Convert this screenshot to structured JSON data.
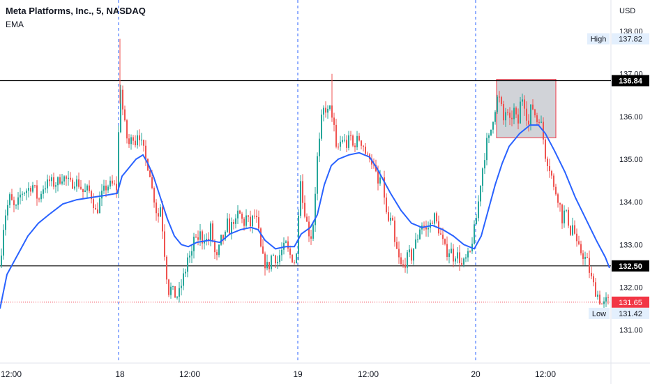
{
  "header": {
    "symbol_title": "Meta Platforms, Inc., 5, NASDAQ",
    "indicator_label": "EMA"
  },
  "chart_data": {
    "type": "candlestick",
    "currency_label": "USD",
    "y_ticks": [
      131.0,
      132.0,
      133.0,
      134.0,
      135.0,
      136.0,
      137.0,
      138.0
    ],
    "ylim": [
      130.6,
      138.5
    ],
    "x_tick_labels": [
      "12:00",
      "18",
      "12:00",
      "19",
      "12:00",
      "20",
      "12:00"
    ],
    "day_separators": [
      "18",
      "19",
      "20"
    ],
    "horizontal_levels": [
      136.84,
      132.5
    ],
    "current_price": 131.65,
    "high": {
      "label": "High",
      "value": 137.82
    },
    "low": {
      "label": "Low",
      "value": 131.42
    },
    "colors": {
      "up": "#26a69a",
      "down": "#ef5350",
      "ema": "#2962ff",
      "level_line": "#000000",
      "current_price": "#f23645",
      "separator": "#2962ff",
      "box_fill": "#b2b5be",
      "box_border": "#f23645"
    },
    "price_path": [
      [
        0,
        132.5
      ],
      [
        6,
        133.6
      ],
      [
        14,
        134.1
      ],
      [
        22,
        133.8
      ],
      [
        30,
        134.2
      ],
      [
        40,
        134.3
      ],
      [
        48,
        134.4
      ],
      [
        55,
        134.0
      ],
      [
        60,
        134.3
      ],
      [
        66,
        134.4
      ],
      [
        72,
        134.5
      ],
      [
        78,
        134.4
      ],
      [
        84,
        134.5
      ],
      [
        90,
        134.6
      ],
      [
        96,
        134.5
      ],
      [
        102,
        134.4
      ],
      [
        108,
        134.5
      ],
      [
        114,
        134.4
      ],
      [
        120,
        134.2
      ],
      [
        126,
        134.3
      ],
      [
        132,
        134.1
      ],
      [
        138,
        133.7
      ],
      [
        144,
        134.1
      ],
      [
        150,
        134.3
      ],
      [
        156,
        134.4
      ],
      [
        162,
        134.4
      ],
      [
        168,
        134.3
      ],
      [
        172,
        136.9
      ],
      [
        175,
        136.3
      ],
      [
        178,
        135.9
      ],
      [
        182,
        135.5
      ],
      [
        186,
        135.3
      ],
      [
        190,
        135.6
      ],
      [
        194,
        135.4
      ],
      [
        198,
        135.7
      ],
      [
        202,
        135.4
      ],
      [
        206,
        135.2
      ],
      [
        210,
        134.9
      ],
      [
        214,
        134.8
      ],
      [
        218,
        134.3
      ],
      [
        222,
        134.0
      ],
      [
        226,
        133.6
      ],
      [
        230,
        133.9
      ],
      [
        234,
        133.2
      ],
      [
        238,
        132.4
      ],
      [
        242,
        131.9
      ],
      [
        246,
        132.0
      ],
      [
        250,
        131.8
      ],
      [
        254,
        131.8
      ],
      [
        258,
        131.9
      ],
      [
        262,
        132.2
      ],
      [
        266,
        132.4
      ],
      [
        270,
        132.8
      ],
      [
        274,
        132.6
      ],
      [
        278,
        133.2
      ],
      [
        282,
        133.0
      ],
      [
        286,
        133.3
      ],
      [
        290,
        133.1
      ],
      [
        294,
        133.2
      ],
      [
        298,
        133.0
      ],
      [
        302,
        133.4
      ],
      [
        306,
        133.0
      ],
      [
        310,
        132.6
      ],
      [
        314,
        132.9
      ],
      [
        318,
        133.2
      ],
      [
        322,
        133.1
      ],
      [
        326,
        133.5
      ],
      [
        330,
        133.3
      ],
      [
        334,
        133.6
      ],
      [
        338,
        133.5
      ],
      [
        342,
        133.8
      ],
      [
        346,
        133.6
      ],
      [
        350,
        133.5
      ],
      [
        354,
        133.7
      ],
      [
        358,
        133.4
      ],
      [
        362,
        133.6
      ],
      [
        366,
        133.7
      ],
      [
        370,
        133.4
      ],
      [
        374,
        132.9
      ],
      [
        378,
        132.6
      ],
      [
        382,
        132.5
      ],
      [
        386,
        132.5
      ],
      [
        390,
        132.8
      ],
      [
        394,
        132.7
      ],
      [
        398,
        132.6
      ],
      [
        402,
        132.8
      ],
      [
        406,
        132.9
      ],
      [
        410,
        133.0
      ],
      [
        414,
        132.8
      ],
      [
        418,
        132.7
      ],
      [
        422,
        132.6
      ],
      [
        426,
        132.8
      ],
      [
        430,
        134.8
      ],
      [
        434,
        134.0
      ],
      [
        438,
        133.7
      ],
      [
        442,
        133.3
      ],
      [
        446,
        133.2
      ],
      [
        450,
        133.6
      ],
      [
        454,
        134.9
      ],
      [
        458,
        135.4
      ],
      [
        462,
        136.1
      ],
      [
        466,
        136.2
      ],
      [
        470,
        136.1
      ],
      [
        474,
        136.2
      ],
      [
        478,
        135.9
      ],
      [
        482,
        135.2
      ],
      [
        486,
        135.3
      ],
      [
        490,
        135.5
      ],
      [
        494,
        135.4
      ],
      [
        498,
        135.3
      ],
      [
        502,
        135.6
      ],
      [
        506,
        135.3
      ],
      [
        510,
        135.4
      ],
      [
        514,
        135.5
      ],
      [
        518,
        135.4
      ],
      [
        522,
        135.3
      ],
      [
        526,
        135.0
      ],
      [
        530,
        135.1
      ],
      [
        534,
        134.9
      ],
      [
        538,
        134.7
      ],
      [
        542,
        134.4
      ],
      [
        546,
        134.6
      ],
      [
        550,
        134.3
      ],
      [
        554,
        133.7
      ],
      [
        558,
        133.5
      ],
      [
        562,
        133.6
      ],
      [
        566,
        133.0
      ],
      [
        570,
        132.8
      ],
      [
        574,
        132.5
      ],
      [
        578,
        132.5
      ],
      [
        582,
        132.6
      ],
      [
        586,
        132.8
      ],
      [
        590,
        132.7
      ],
      [
        594,
        133.0
      ],
      [
        598,
        133.1
      ],
      [
        602,
        133.4
      ],
      [
        606,
        133.5
      ],
      [
        610,
        133.3
      ],
      [
        614,
        133.4
      ],
      [
        618,
        133.5
      ],
      [
        622,
        133.7
      ],
      [
        626,
        133.5
      ],
      [
        630,
        133.3
      ],
      [
        634,
        133.1
      ],
      [
        638,
        132.9
      ],
      [
        642,
        132.8
      ],
      [
        646,
        132.9
      ],
      [
        650,
        132.7
      ],
      [
        654,
        132.8
      ],
      [
        658,
        132.7
      ],
      [
        662,
        132.5
      ],
      [
        666,
        132.6
      ],
      [
        670,
        132.7
      ],
      [
        674,
        132.8
      ],
      [
        678,
        133.2
      ],
      [
        682,
        133.5
      ],
      [
        686,
        134.0
      ],
      [
        690,
        134.6
      ],
      [
        694,
        135.0
      ],
      [
        698,
        135.4
      ],
      [
        702,
        135.5
      ],
      [
        706,
        135.9
      ],
      [
        710,
        136.2
      ],
      [
        714,
        136.5
      ],
      [
        718,
        136.3
      ],
      [
        722,
        135.9
      ],
      [
        726,
        136.2
      ],
      [
        730,
        135.8
      ],
      [
        734,
        136.0
      ],
      [
        738,
        136.2
      ],
      [
        742,
        135.7
      ],
      [
        746,
        136.3
      ],
      [
        750,
        136.5
      ],
      [
        754,
        136.1
      ],
      [
        758,
        135.8
      ],
      [
        762,
        136.3
      ],
      [
        766,
        136.1
      ],
      [
        770,
        135.9
      ],
      [
        774,
        136.0
      ],
      [
        778,
        135.6
      ],
      [
        782,
        135.1
      ],
      [
        786,
        134.9
      ],
      [
        790,
        134.7
      ],
      [
        794,
        134.3
      ],
      [
        798,
        134.2
      ],
      [
        802,
        134.0
      ],
      [
        806,
        133.6
      ],
      [
        810,
        133.8
      ],
      [
        814,
        133.6
      ],
      [
        818,
        133.3
      ],
      [
        822,
        133.5
      ],
      [
        826,
        133.0
      ],
      [
        830,
        132.9
      ],
      [
        834,
        132.8
      ],
      [
        838,
        132.7
      ],
      [
        842,
        132.6
      ],
      [
        846,
        132.3
      ],
      [
        850,
        132.1
      ],
      [
        854,
        131.9
      ],
      [
        858,
        131.8
      ],
      [
        862,
        131.6
      ],
      [
        866,
        131.6
      ],
      [
        870,
        131.7
      ],
      [
        874,
        131.65
      ]
    ],
    "ema_path": [
      [
        0,
        131.5
      ],
      [
        10,
        132.3
      ],
      [
        20,
        132.6
      ],
      [
        30,
        132.9
      ],
      [
        40,
        133.2
      ],
      [
        55,
        133.5
      ],
      [
        70,
        133.7
      ],
      [
        90,
        133.95
      ],
      [
        110,
        134.05
      ],
      [
        130,
        134.1
      ],
      [
        150,
        134.15
      ],
      [
        168,
        134.2
      ],
      [
        175,
        134.6
      ],
      [
        185,
        134.8
      ],
      [
        195,
        135.0
      ],
      [
        205,
        135.1
      ],
      [
        212,
        134.9
      ],
      [
        220,
        134.6
      ],
      [
        230,
        134.1
      ],
      [
        240,
        133.6
      ],
      [
        250,
        133.2
      ],
      [
        260,
        133.0
      ],
      [
        270,
        132.95
      ],
      [
        282,
        133.05
      ],
      [
        300,
        133.1
      ],
      [
        315,
        133.05
      ],
      [
        330,
        133.25
      ],
      [
        345,
        133.35
      ],
      [
        360,
        133.4
      ],
      [
        370,
        133.35
      ],
      [
        380,
        133.1
      ],
      [
        395,
        132.9
      ],
      [
        410,
        132.95
      ],
      [
        422,
        132.95
      ],
      [
        432,
        133.25
      ],
      [
        445,
        133.4
      ],
      [
        455,
        133.7
      ],
      [
        465,
        134.4
      ],
      [
        475,
        134.85
      ],
      [
        485,
        135.0
      ],
      [
        500,
        135.1
      ],
      [
        515,
        135.15
      ],
      [
        530,
        135.05
      ],
      [
        540,
        134.8
      ],
      [
        550,
        134.5
      ],
      [
        560,
        134.2
      ],
      [
        575,
        133.8
      ],
      [
        590,
        133.5
      ],
      [
        605,
        133.4
      ],
      [
        620,
        133.45
      ],
      [
        635,
        133.35
      ],
      [
        650,
        133.2
      ],
      [
        665,
        133.0
      ],
      [
        680,
        132.9
      ],
      [
        690,
        133.2
      ],
      [
        700,
        133.8
      ],
      [
        710,
        134.4
      ],
      [
        720,
        134.9
      ],
      [
        730,
        135.3
      ],
      [
        745,
        135.6
      ],
      [
        760,
        135.8
      ],
      [
        772,
        135.8
      ],
      [
        782,
        135.6
      ],
      [
        795,
        135.2
      ],
      [
        810,
        134.7
      ],
      [
        825,
        134.1
      ],
      [
        840,
        133.6
      ],
      [
        855,
        133.1
      ],
      [
        868,
        132.7
      ],
      [
        874,
        132.45
      ]
    ]
  }
}
